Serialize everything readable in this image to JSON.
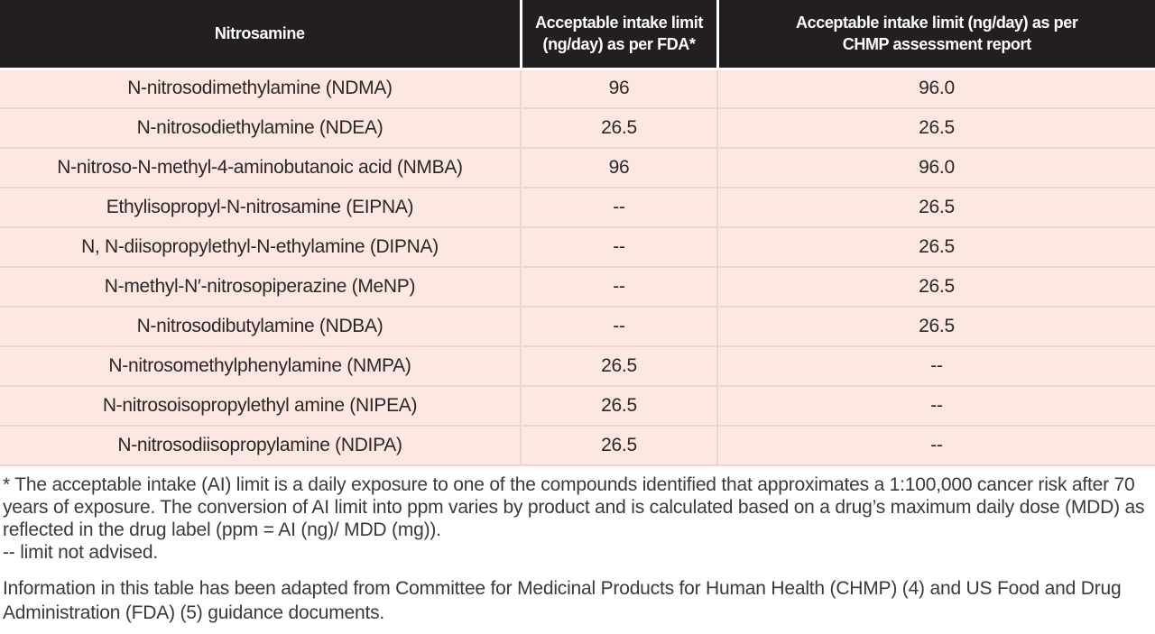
{
  "table": {
    "header": {
      "nitrosamine": "Nitrosamine",
      "fda": "Acceptable intake limit (ng/day) as per FDA*",
      "chmp": "Acceptable intake limit (ng/day) as per CHMP assessment report"
    },
    "rows": [
      {
        "name": "N-nitrosodimethylamine (NDMA)",
        "fda": "96",
        "chmp": "96.0"
      },
      {
        "name": "N-nitrosodiethylamine (NDEA)",
        "fda": "26.5",
        "chmp": "26.5"
      },
      {
        "name": "N-nitroso-N-methyl-4-aminobutanoic acid (NMBA)",
        "fda": "96",
        "chmp": "96.0"
      },
      {
        "name": "Ethylisopropyl-N-nitrosamine (EIPNA)",
        "fda": "--",
        "chmp": "26.5"
      },
      {
        "name": "N, N-diisopropylethyl-N-ethylamine (DIPNA)",
        "fda": "--",
        "chmp": "26.5"
      },
      {
        "name": "N-methyl-N′-nitrosopiperazine (MeNP)",
        "fda": "--",
        "chmp": "26.5"
      },
      {
        "name": "N-nitrosodibutylamine (NDBA)",
        "fda": "--",
        "chmp": "26.5"
      },
      {
        "name": "N-nitrosomethylphenylamine (NMPA)",
        "fda": "26.5",
        "chmp": "--"
      },
      {
        "name": "N-nitrosoisopropylethyl amine (NIPEA)",
        "fda": "26.5",
        "chmp": "--"
      },
      {
        "name": "N-nitrosodiisopropylamine (NDIPA)",
        "fda": "26.5",
        "chmp": "--"
      }
    ]
  },
  "footnotes": {
    "asterisk": "* The acceptable intake (AI) limit is a daily exposure to one of the compounds identified that approximates a 1:100,000 cancer risk after 70 years of exposure. The conversion of AI limit into ppm varies by product and is calculated based on a drug’s maximum daily dose (MDD) as reflected in the drug label (ppm = AI (ng)/ MDD (mg)).",
    "dash_note": "-- limit not advised.",
    "source": "Information in this table has been adapted from Committee for Medicinal Products for Human Health (CHMP) (4) and US Food and Drug Administration (FDA) (5) guidance documents."
  },
  "colors": {
    "header_bg": "#231f20",
    "header_text": "#ffffff",
    "row_bg": "#fce7e1",
    "grid_line": "#f2d2ca",
    "body_text": "#2b2728",
    "note_text": "#3a3a3a"
  }
}
